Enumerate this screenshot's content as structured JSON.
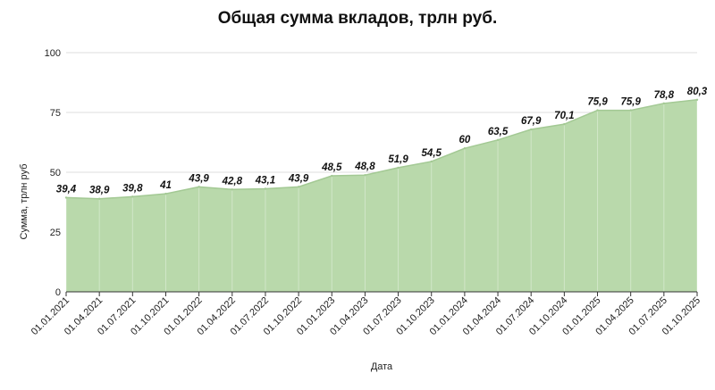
{
  "chart_data": {
    "type": "area",
    "title": "Общая сумма вкладов, трлн руб.",
    "xlabel": "Дата",
    "ylabel": "Сумма, трлн руб",
    "ylim": [
      0,
      100
    ],
    "yticks": [
      "0",
      "25",
      "50",
      "75",
      "100"
    ],
    "grid": true,
    "colors": {
      "fill": "#b9d9ab",
      "line": "#a3c994",
      "grid": "#dcdcdc"
    },
    "categories": [
      "01.01.2021",
      "01.04.2021",
      "01.07.2021",
      "01.10.2021",
      "01.01.2022",
      "01.04.2022",
      "01.07.2022",
      "01.10.2022",
      "01.01.2023",
      "01.04.2023",
      "01.07.2023",
      "01.10.2023",
      "01.01.2024",
      "01.04.2024",
      "01.07.2024",
      "01.10.2024",
      "01.01.2025",
      "01.04.2025",
      "01.07.2025",
      "01.10.2025"
    ],
    "values": [
      39.4,
      38.9,
      39.8,
      41,
      43.9,
      42.8,
      43.1,
      43.9,
      48.5,
      48.8,
      51.9,
      54.5,
      60,
      63.5,
      67.9,
      70.1,
      75.9,
      75.9,
      78.8,
      80.3
    ],
    "data_labels": [
      "39,4",
      "38,9",
      "39,8",
      "41",
      "43,9",
      "42,8",
      "43,1",
      "43,9",
      "48,5",
      "48,8",
      "51,9",
      "54,5",
      "60",
      "63,5",
      "67,9",
      "70,1",
      "75,9",
      "75,9",
      "78,8",
      "80,3"
    ]
  }
}
